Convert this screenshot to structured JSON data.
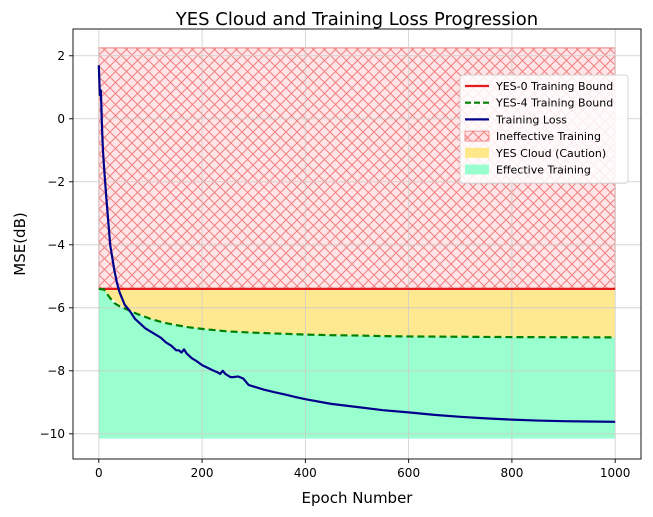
{
  "chart_data": {
    "type": "line",
    "title": "YES Cloud and Training Loss Progression",
    "xlabel": "Epoch Number",
    "ylabel": "MSE(dB)",
    "xlim": [
      -50,
      1050
    ],
    "ylim": [
      -10.8,
      2.85
    ],
    "xticks": [
      0,
      200,
      400,
      600,
      800,
      1000
    ],
    "yticks": [
      2,
      0,
      -2,
      -4,
      -6,
      -8,
      -10
    ],
    "xtick_labels": [
      "0",
      "200",
      "400",
      "600",
      "800",
      "1000"
    ],
    "ytick_labels": [
      "2",
      "0",
      "−2",
      "−4",
      "−6",
      "−8",
      "−10"
    ],
    "grid": true,
    "legend_position": "upper-right",
    "colors": {
      "yes0": "#e41a1c",
      "yes4": "#008000",
      "loss": "#00008b",
      "ineffective_fill": "#ffe0e3",
      "ineffective_hatch": "#f08080",
      "cloud_fill": "#ffe88a",
      "effective_fill": "#9affcf",
      "grid": "#cccccc"
    },
    "regions": [
      {
        "name": "Ineffective Training",
        "y_top": 2.25,
        "y_bottom": -5.4,
        "x_range": [
          0,
          1000
        ]
      },
      {
        "name": "YES Cloud (Caution)",
        "x": [
          0,
          20,
          50,
          100,
          150,
          200,
          250,
          300,
          400,
          500,
          600,
          700,
          800,
          900,
          1000
        ],
        "y_top": -5.4,
        "y_bottom": [
          -5.4,
          -5.65,
          -6.02,
          -6.35,
          -6.55,
          -6.67,
          -6.75,
          -6.79,
          -6.85,
          -6.88,
          -6.91,
          -6.92,
          -6.93,
          -6.935,
          -6.94
        ]
      },
      {
        "name": "Effective Training",
        "y_top_series": "YES-4 Training Bound",
        "y_bottom": -10.15,
        "x_range": [
          0,
          1000
        ]
      }
    ],
    "series": [
      {
        "name": "YES-0 Training Bound",
        "style": "solid",
        "x": [
          0,
          1000
        ],
        "y": [
          -5.4,
          -5.4
        ]
      },
      {
        "name": "YES-4 Training Bound",
        "style": "dashed",
        "x": [
          0,
          10,
          20,
          30,
          40,
          50,
          75,
          100,
          125,
          150,
          175,
          200,
          250,
          300,
          350,
          400,
          450,
          500,
          550,
          600,
          700,
          800,
          900,
          1000
        ],
        "y": [
          -5.4,
          -5.42,
          -5.65,
          -5.85,
          -5.95,
          -6.02,
          -6.2,
          -6.35,
          -6.47,
          -6.55,
          -6.62,
          -6.67,
          -6.75,
          -6.79,
          -6.82,
          -6.85,
          -6.87,
          -6.88,
          -6.9,
          -6.91,
          -6.92,
          -6.93,
          -6.935,
          -6.94
        ]
      },
      {
        "name": "Training Loss",
        "style": "solid",
        "x": [
          0,
          2,
          4,
          6,
          8,
          10,
          14,
          18,
          22,
          26,
          30,
          35,
          40,
          45,
          50,
          55,
          60,
          70,
          80,
          90,
          100,
          110,
          120,
          130,
          140,
          150,
          155,
          160,
          165,
          170,
          180,
          190,
          200,
          210,
          220,
          230,
          235,
          240,
          245,
          250,
          255,
          260,
          270,
          280,
          285,
          290,
          300,
          320,
          340,
          360,
          380,
          400,
          450,
          500,
          550,
          600,
          650,
          700,
          750,
          800,
          850,
          900,
          950,
          1000
        ],
        "y": [
          1.7,
          0.75,
          0.9,
          -0.2,
          -1.0,
          -1.5,
          -2.4,
          -3.2,
          -4.0,
          -4.4,
          -4.8,
          -5.2,
          -5.5,
          -5.7,
          -5.9,
          -6.0,
          -6.1,
          -6.35,
          -6.5,
          -6.65,
          -6.75,
          -6.85,
          -6.95,
          -7.1,
          -7.2,
          -7.35,
          -7.35,
          -7.42,
          -7.32,
          -7.45,
          -7.6,
          -7.7,
          -7.82,
          -7.9,
          -7.98,
          -8.05,
          -8.1,
          -8.0,
          -8.1,
          -8.15,
          -8.2,
          -8.2,
          -8.18,
          -8.25,
          -8.35,
          -8.45,
          -8.5,
          -8.6,
          -8.68,
          -8.75,
          -8.83,
          -8.9,
          -9.05,
          -9.15,
          -9.25,
          -9.32,
          -9.4,
          -9.46,
          -9.51,
          -9.55,
          -9.58,
          -9.6,
          -9.61,
          -9.62
        ]
      }
    ],
    "legend": [
      {
        "label": "YES-0 Training Bound",
        "swatch": "solid-line",
        "color": "#e41a1c"
      },
      {
        "label": "YES-4 Training Bound",
        "swatch": "dashed-line",
        "color": "#008000"
      },
      {
        "label": "Training Loss",
        "swatch": "solid-line",
        "color": "#00008b"
      },
      {
        "label": "Ineffective Training",
        "swatch": "hatched-box",
        "color": "#ffe0e3"
      },
      {
        "label": "YES Cloud (Caution)",
        "swatch": "box",
        "color": "#ffe88a"
      },
      {
        "label": "Effective Training",
        "swatch": "box",
        "color": "#9affcf"
      }
    ]
  }
}
